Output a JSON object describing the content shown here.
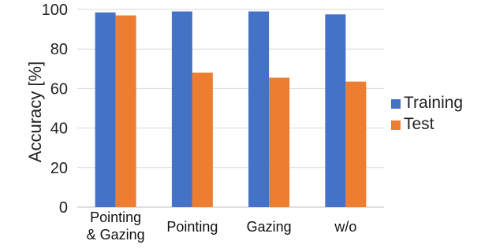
{
  "chart_data": {
    "type": "bar",
    "title": "",
    "xlabel": "",
    "ylabel": "Accuracy [%]",
    "ylim": [
      0,
      100
    ],
    "yticks": [
      0,
      20,
      40,
      60,
      80,
      100
    ],
    "grid": true,
    "legend_position": "right",
    "categories": [
      [
        "Pointing",
        "& Gazing"
      ],
      [
        "Pointing"
      ],
      [
        "Gazing"
      ],
      [
        "w/o"
      ]
    ],
    "series": [
      {
        "name": "Training",
        "color": "#4472C4",
        "values": [
          98.5,
          99,
          99,
          97.5
        ]
      },
      {
        "name": "Test",
        "color": "#ED7D31",
        "values": [
          97,
          68,
          65.5,
          63.5
        ]
      }
    ]
  }
}
